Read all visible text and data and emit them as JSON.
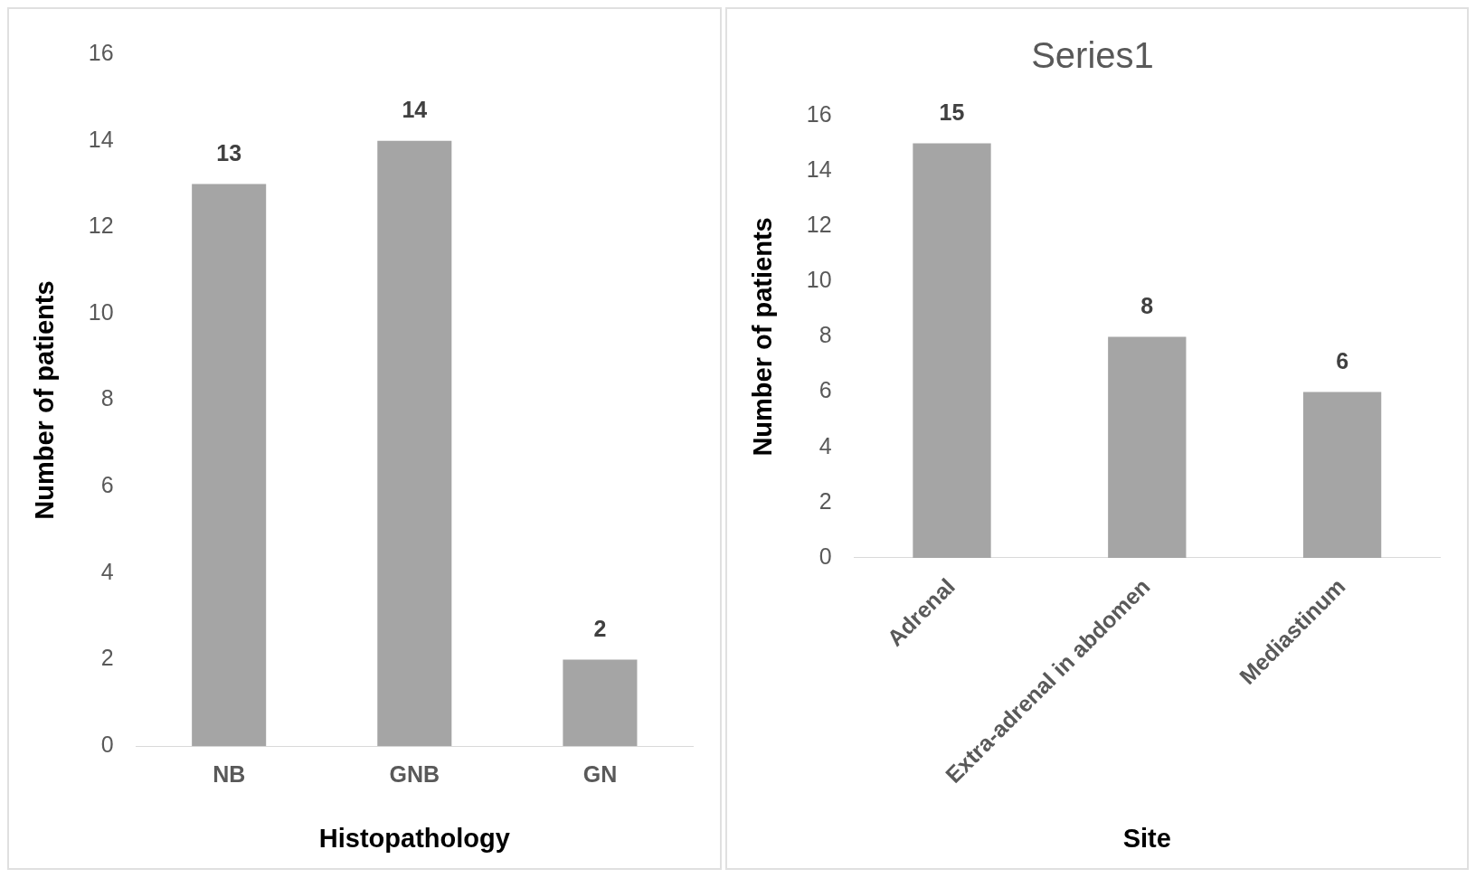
{
  "chart_data": [
    {
      "type": "bar",
      "xlabel": "Histopathology",
      "ylabel": "Number of patients",
      "categories": [
        "NB",
        "GNB",
        "GN"
      ],
      "values": [
        13,
        14,
        2
      ],
      "color": "#a5a5a5",
      "ylim": [
        0,
        16
      ],
      "yticks": [
        0,
        2,
        4,
        6,
        8,
        10,
        12,
        14,
        16
      ],
      "grid": false,
      "legend": false,
      "data_labels": true
    },
    {
      "type": "bar",
      "title": "Series1",
      "xlabel": "Site",
      "ylabel": "Number of patients",
      "categories": [
        "Adrenal",
        "Extra-adrenal in abdomen",
        "Mediastinum"
      ],
      "values": [
        15,
        8,
        6
      ],
      "color": "#a5a5a5",
      "ylim": [
        0,
        16
      ],
      "yticks": [
        0,
        2,
        4,
        6,
        8,
        10,
        12,
        14,
        16
      ],
      "grid": false,
      "legend": false,
      "data_labels": true
    }
  ]
}
